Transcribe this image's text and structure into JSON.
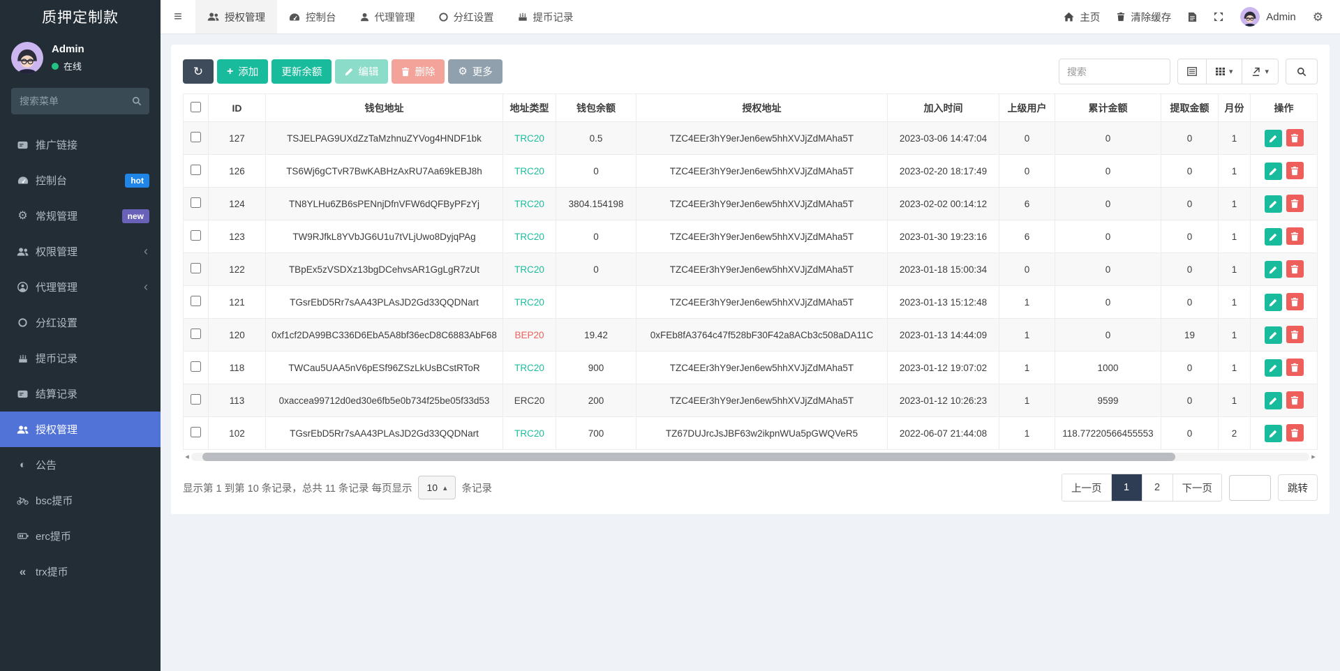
{
  "app": {
    "title": "质押定制款"
  },
  "colors": {
    "sidebar_bg": "#232d36",
    "active_menu": "#5173d7",
    "success": "#18bc9c",
    "danger": "#e74c3c",
    "primary_dark": "#2e3d54",
    "hot_badge": "#1f86e8",
    "new_badge": "#6a62b8",
    "trc20": "#1cbc9c",
    "bep20": "#ee5f5b",
    "erc20": "#444444",
    "online_dot": "#23c483"
  },
  "sidebar": {
    "user": {
      "name": "Admin",
      "status": "在线"
    },
    "search_placeholder": "搜索菜单",
    "items": [
      {
        "key": "promo-link",
        "label": "推广链接",
        "icon": "card-icon"
      },
      {
        "key": "dashboard",
        "label": "控制台",
        "icon": "dashboard-icon",
        "badge": "hot",
        "badge_color": "#1f86e8"
      },
      {
        "key": "general",
        "label": "常规管理",
        "icon": "gears-icon",
        "badge": "new",
        "badge_color": "#6a62b8"
      },
      {
        "key": "permission",
        "label": "权限管理",
        "icon": "users-icon",
        "arrow": true
      },
      {
        "key": "agent",
        "label": "代理管理",
        "icon": "user-circle-icon",
        "arrow": true
      },
      {
        "key": "dividend",
        "label": "分红设置",
        "icon": "circle-icon"
      },
      {
        "key": "withdraw-log",
        "label": "提币记录",
        "icon": "cake-icon"
      },
      {
        "key": "settle-log",
        "label": "结算记录",
        "icon": "card-icon"
      },
      {
        "key": "auth",
        "label": "授权管理",
        "icon": "users-icon",
        "active": true
      },
      {
        "key": "notice",
        "label": "公告",
        "icon": "adjust-icon"
      },
      {
        "key": "bsc",
        "label": "bsc提币",
        "icon": "bicycle-icon"
      },
      {
        "key": "erc",
        "label": "erc提币",
        "icon": "battery-icon"
      },
      {
        "key": "trx",
        "label": "trx提币",
        "icon": "backward-icon"
      }
    ]
  },
  "navbar": {
    "tabs": [
      {
        "key": "auth",
        "label": "授权管理",
        "icon": "users-icon",
        "active": true
      },
      {
        "key": "dashboard",
        "label": "控制台",
        "icon": "dashboard-icon"
      },
      {
        "key": "agent",
        "label": "代理管理",
        "icon": "user-icon"
      },
      {
        "key": "dividend",
        "label": "分红设置",
        "icon": "circle-icon"
      },
      {
        "key": "withdraw",
        "label": "提币记录",
        "icon": "cake-icon"
      }
    ],
    "home_label": "主页",
    "clear_cache_label": "清除缓存",
    "user_name": "Admin"
  },
  "toolbar": {
    "add_label": "添加",
    "update_balance_label": "更新余额",
    "edit_label": "编辑",
    "delete_label": "删除",
    "more_label": "更多",
    "search_placeholder": "搜索"
  },
  "table": {
    "columns": [
      "ID",
      "钱包地址",
      "地址类型",
      "钱包余额",
      "授权地址",
      "加入时间",
      "上级用户",
      "累计金额",
      "提取金额",
      "月份",
      "操作"
    ],
    "type_colors": {
      "TRC20": "#1cbc9c",
      "BEP20": "#ee5f5b",
      "ERC20": "#444444"
    },
    "rows": [
      {
        "id": "127",
        "wallet": "TSJELPAG9UXdZzTaMzhnuZYVog4HNDF1bk",
        "type": "TRC20",
        "balance": "0.5",
        "auth": "TZC4EEr3hY9erJen6ew5hhXVJjZdMAha5T",
        "joined": "2023-03-06 14:47:04",
        "parent": "0",
        "total": "0",
        "withdrawn": "0",
        "month": "1"
      },
      {
        "id": "126",
        "wallet": "TS6Wj6gCTvR7BwKABHzAxRU7Aa69kEBJ8h",
        "type": "TRC20",
        "balance": "0",
        "auth": "TZC4EEr3hY9erJen6ew5hhXVJjZdMAha5T",
        "joined": "2023-02-20 18:17:49",
        "parent": "0",
        "total": "0",
        "withdrawn": "0",
        "month": "1"
      },
      {
        "id": "124",
        "wallet": "TN8YLHu6ZB6sPENnjDfnVFW6dQFByPFzYj",
        "type": "TRC20",
        "balance": "3804.154198",
        "auth": "TZC4EEr3hY9erJen6ew5hhXVJjZdMAha5T",
        "joined": "2023-02-02 00:14:12",
        "parent": "6",
        "total": "0",
        "withdrawn": "0",
        "month": "1"
      },
      {
        "id": "123",
        "wallet": "TW9RJfkL8YVbJG6U1u7tVLjUwo8DyjqPAg",
        "type": "TRC20",
        "balance": "0",
        "auth": "TZC4EEr3hY9erJen6ew5hhXVJjZdMAha5T",
        "joined": "2023-01-30 19:23:16",
        "parent": "6",
        "total": "0",
        "withdrawn": "0",
        "month": "1"
      },
      {
        "id": "122",
        "wallet": "TBpEx5zVSDXz13bgDCehvsAR1GgLgR7zUt",
        "type": "TRC20",
        "balance": "0",
        "auth": "TZC4EEr3hY9erJen6ew5hhXVJjZdMAha5T",
        "joined": "2023-01-18 15:00:34",
        "parent": "0",
        "total": "0",
        "withdrawn": "0",
        "month": "1"
      },
      {
        "id": "121",
        "wallet": "TGsrEbD5Rr7sAA43PLAsJD2Gd33QQDNart",
        "type": "TRC20",
        "balance": "",
        "auth": "TZC4EEr3hY9erJen6ew5hhXVJjZdMAha5T",
        "joined": "2023-01-13 15:12:48",
        "parent": "1",
        "total": "0",
        "withdrawn": "0",
        "month": "1"
      },
      {
        "id": "120",
        "wallet": "0xf1cf2DA99BC336D6EbA5A8bf36ecD8C6883AbF68",
        "type": "BEP20",
        "balance": "19.42",
        "auth": "0xFEb8fA3764c47f528bF30F42a8ACb3c508aDA11C",
        "joined": "2023-01-13 14:44:09",
        "parent": "1",
        "total": "0",
        "withdrawn": "19",
        "month": "1"
      },
      {
        "id": "118",
        "wallet": "TWCau5UAA5nV6pESf96ZSzLkUsBCstRToR",
        "type": "TRC20",
        "balance": "900",
        "auth": "TZC4EEr3hY9erJen6ew5hhXVJjZdMAha5T",
        "joined": "2023-01-12 19:07:02",
        "parent": "1",
        "total": "1000",
        "withdrawn": "0",
        "month": "1"
      },
      {
        "id": "113",
        "wallet": "0xaccea99712d0ed30e6fb5e0b734f25be05f33d53",
        "type": "ERC20",
        "balance": "200",
        "auth": "TZC4EEr3hY9erJen6ew5hhXVJjZdMAha5T",
        "joined": "2023-01-12 10:26:23",
        "parent": "1",
        "total": "9599",
        "withdrawn": "0",
        "month": "1"
      },
      {
        "id": "102",
        "wallet": "TGsrEbD5Rr7sAA43PLAsJD2Gd33QQDNart",
        "type": "TRC20",
        "balance": "700",
        "auth": "TZ67DUJrcJsJBF63w2ikpnWUa5pGWQVeR5",
        "joined": "2022-06-07 21:44:08",
        "parent": "1",
        "total": "118.77220566455553",
        "withdrawn": "0",
        "month": "2"
      }
    ]
  },
  "footer": {
    "summary_prefix": "显示第 1 到第 10 条记录，总共 11 条记录 每页显示",
    "page_size": "10",
    "summary_suffix": "条记录",
    "prev_label": "上一页",
    "next_label": "下一页",
    "pages": [
      "1",
      "2"
    ],
    "active_page": "1",
    "jump_label": "跳转"
  }
}
